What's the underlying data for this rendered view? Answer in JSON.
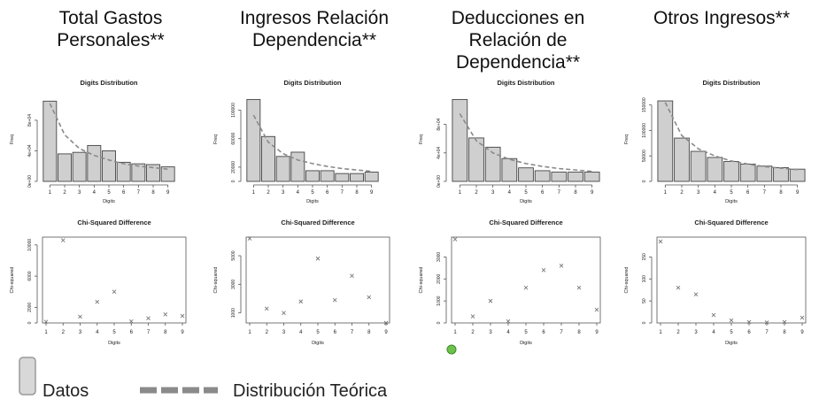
{
  "panel_titles": [
    "Total Gastos\nPersonales**",
    "Ingresos Relación\nDependencia**",
    "Deducciones en\nRelación de\nDependencia**",
    "Otros Ingresos**"
  ],
  "legend": {
    "data_label": "Datos",
    "theory_label": "Distribución Teórica"
  },
  "colors": {
    "bar_fill": "#cfcfcf",
    "bar_stroke": "#444444",
    "curve": "#8a8a8a",
    "point": "#777777",
    "dot_marker": "#6cc24a"
  },
  "chart_data": [
    {
      "type": "bar",
      "title": "Digits Distribution",
      "xlabel": "Digits",
      "ylabel": "Freq",
      "categories": [
        "1",
        "2",
        "3",
        "4",
        "5",
        "6",
        "7",
        "8",
        "9"
      ],
      "series": [
        {
          "values": [
            105000,
            36000,
            38000,
            47000,
            40000,
            25000,
            23000,
            22000,
            19000
          ]
        },
        {
          "name": "Distribución Teórica",
          "values": [
            102000,
            61000,
            43000,
            34000,
            28000,
            23000,
            20000,
            18000,
            16000
          ]
        }
      ],
      "ylim": [
        0,
        110000
      ],
      "yticks": [
        0,
        40000,
        80000
      ],
      "ytick_labels": [
        "0e+00",
        "4e+04",
        "8e+04"
      ]
    },
    {
      "type": "scatter",
      "title": "Chi-Squared Difference",
      "xlabel": "Digits",
      "ylabel": "Chi-squared",
      "x": [
        1,
        2,
        3,
        4,
        5,
        6,
        7,
        8,
        9
      ],
      "y": [
        150,
        10600,
        800,
        2700,
        4000,
        200,
        600,
        1100,
        900
      ],
      "ylim": [
        0,
        11000
      ],
      "yticks": [
        0,
        2000,
        6000,
        10000
      ],
      "ytick_labels": [
        "0",
        "2000",
        "6000",
        "10000"
      ]
    },
    {
      "type": "bar",
      "title": "Digits Distribution",
      "xlabel": "Digits",
      "ylabel": "Freq",
      "categories": [
        "1",
        "2",
        "3",
        "4",
        "5",
        "6",
        "7",
        "8",
        "9"
      ],
      "series": [
        {
          "values": [
            115000,
            63000,
            35000,
            41000,
            15000,
            15000,
            11000,
            11000,
            13000
          ]
        },
        {
          "name": "Distribución Teórica",
          "values": [
            93000,
            55000,
            39000,
            30000,
            25000,
            21000,
            18000,
            16000,
            14000
          ]
        }
      ],
      "ylim": [
        0,
        118000
      ],
      "yticks": [
        0,
        20000,
        60000,
        100000
      ],
      "ytick_labels": [
        "0",
        "20000",
        "60000",
        "100000"
      ]
    },
    {
      "type": "scatter",
      "title": "Chi-Squared Difference",
      "xlabel": "Digits",
      "ylabel": "Chi-squared",
      "x": [
        1,
        2,
        3,
        4,
        5,
        6,
        7,
        8,
        9
      ],
      "y": [
        6200,
        1300,
        1000,
        1800,
        4800,
        1900,
        3600,
        2100,
        300
      ],
      "ylim": [
        300,
        6300
      ],
      "yticks": [
        1000,
        3000,
        5000
      ],
      "ytick_labels": [
        "1000",
        "3000",
        "5000"
      ]
    },
    {
      "type": "bar",
      "title": "Digits Distribution",
      "xlabel": "Digits",
      "ylabel": "Freq",
      "categories": [
        "1",
        "2",
        "3",
        "4",
        "5",
        "6",
        "7",
        "8",
        "9"
      ],
      "series": [
        {
          "values": [
            115000,
            61000,
            48000,
            32000,
            19000,
            15000,
            13000,
            13000,
            13000
          ]
        },
        {
          "name": "Distribución Teórica",
          "values": [
            95000,
            57000,
            40000,
            31000,
            25000,
            21000,
            18000,
            16000,
            14000
          ]
        }
      ],
      "ylim": [
        0,
        118000
      ],
      "yticks": [
        0,
        40000,
        80000
      ],
      "ytick_labels": [
        "0e+00",
        "4e+04",
        "8e+04"
      ]
    },
    {
      "type": "scatter",
      "title": "Chi-Squared Difference",
      "xlabel": "Digits",
      "ylabel": "Chi-squared",
      "x": [
        1,
        2,
        3,
        4,
        5,
        6,
        7,
        8,
        9
      ],
      "y": [
        3800,
        300,
        1000,
        80,
        1600,
        2400,
        2600,
        1600,
        600
      ],
      "ylim": [
        0,
        3900
      ],
      "yticks": [
        0,
        1000,
        2000,
        3000
      ],
      "ytick_labels": [
        "0",
        "1000",
        "2000",
        "3000"
      ]
    },
    {
      "type": "bar",
      "title": "Digits Distribution",
      "xlabel": "Digits",
      "ylabel": "Freq",
      "categories": [
        "1",
        "2",
        "3",
        "4",
        "5",
        "6",
        "7",
        "8",
        "9"
      ],
      "series": [
        {
          "values": [
            158000,
            85000,
            59000,
            47000,
            39000,
            34000,
            30000,
            27000,
            24000
          ]
        },
        {
          "name": "Distribución Teórica",
          "values": [
            155000,
            90000,
            64000,
            50000,
            40000,
            34000,
            29000,
            26000,
            23000
          ]
        }
      ],
      "ylim": [
        0,
        165000
      ],
      "yticks": [
        0,
        50000,
        100000,
        150000
      ],
      "ytick_labels": [
        "0",
        "50000",
        "100000",
        "150000"
      ]
    },
    {
      "type": "scatter",
      "title": "Chi-Squared Difference",
      "xlabel": "Digits",
      "ylabel": "Chi-squared",
      "x": [
        1,
        2,
        3,
        4,
        5,
        6,
        7,
        8,
        9
      ],
      "y": [
        185,
        80,
        65,
        18,
        6,
        2,
        1,
        2,
        12
      ],
      "ylim": [
        0,
        195
      ],
      "yticks": [
        0,
        50,
        100,
        150
      ],
      "ytick_labels": [
        "0",
        "50",
        "100",
        "150"
      ]
    }
  ]
}
